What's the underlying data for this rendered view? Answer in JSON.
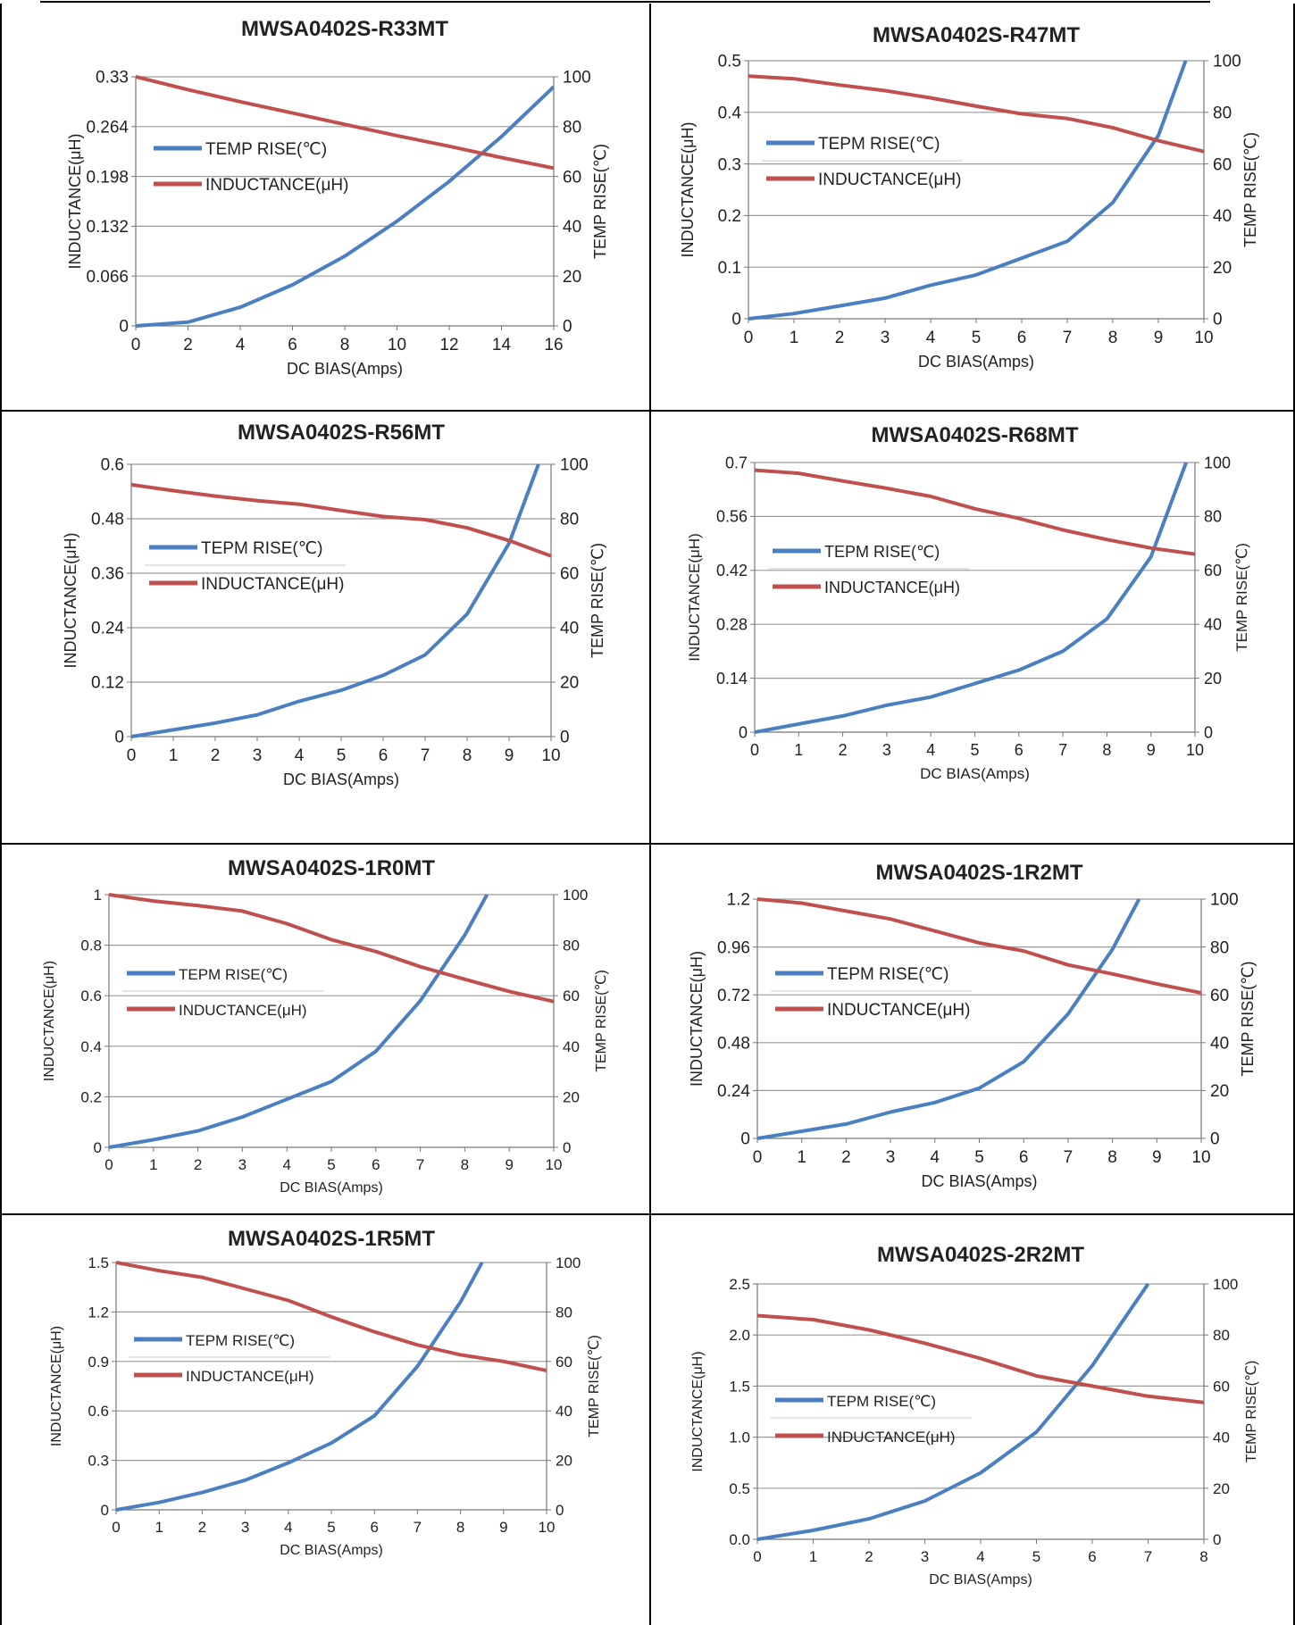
{
  "colors": {
    "temp": "#4a7fc1",
    "inductance": "#c0504d",
    "grid": "#9a9a9a",
    "border": "#000000"
  },
  "chart_data": [
    {
      "type": "line",
      "title": "MWSA0402S-R33MT",
      "xlabel": "DC BIAS(Amps)",
      "ylabel": "INDUCTANCE(μH)",
      "y2label": "TEMP RISE(℃)",
      "xlim": [
        0,
        16
      ],
      "xticks": [
        "0",
        "2",
        "4",
        "6",
        "8",
        "10",
        "12",
        "14",
        "16"
      ],
      "ylim": [
        0,
        0.33
      ],
      "yticks": [
        "0",
        "0.066",
        "0.132",
        "0.198",
        "0.264",
        "0.33"
      ],
      "y2lim": [
        0,
        100
      ],
      "y2ticks": [
        "0",
        "20",
        "40",
        "60",
        "80",
        "100"
      ],
      "legend": [
        "TEMP RISE(℃)",
        "INDUCTANCE(μH)"
      ],
      "grid": true,
      "legend_position": "center-left",
      "series": [
        {
          "axis": "right",
          "x": [
            0,
            2,
            4,
            6,
            8,
            10,
            12,
            14,
            16
          ],
          "y": [
            0,
            1.5,
            7.5,
            16.5,
            28,
            42,
            58,
            76,
            96
          ]
        },
        {
          "axis": "left",
          "x": [
            0,
            2,
            4,
            6,
            8,
            10,
            12,
            14,
            16
          ],
          "y": [
            0.33,
            0.313,
            0.297,
            0.282,
            0.267,
            0.252,
            0.238,
            0.223,
            0.209
          ]
        }
      ]
    },
    {
      "type": "line",
      "title": "MWSA0402S-R47MT",
      "xlabel": "DC BIAS(Amps)",
      "ylabel": "INDUCTANCE(μH)",
      "y2label": "TEMP RISE(℃)",
      "xlim": [
        0,
        10
      ],
      "xticks": [
        "0",
        "1",
        "2",
        "3",
        "4",
        "5",
        "6",
        "7",
        "8",
        "9",
        "10"
      ],
      "ylim": [
        0,
        0.5
      ],
      "yticks": [
        "0",
        "0.1",
        "0.2",
        "0.3",
        "0.4",
        "0.5"
      ],
      "y2lim": [
        0,
        100
      ],
      "y2ticks": [
        "0",
        "20",
        "40",
        "60",
        "80",
        "100"
      ],
      "legend": [
        "TEPM RISE(℃)",
        "INDUCTANCE(μH)"
      ],
      "grid": true,
      "legend_position": "center-left",
      "series": [
        {
          "axis": "right",
          "x": [
            0,
            1,
            2,
            3,
            4,
            5,
            6,
            7,
            8,
            9,
            9.6
          ],
          "y": [
            0,
            2,
            5,
            8,
            13,
            17,
            23.5,
            30,
            45,
            71,
            100
          ]
        },
        {
          "axis": "left",
          "x": [
            0,
            1,
            2,
            3,
            4,
            5,
            6,
            7,
            8,
            9,
            10
          ],
          "y": [
            0.47,
            0.465,
            0.453,
            0.442,
            0.428,
            0.412,
            0.397,
            0.388,
            0.37,
            0.345,
            0.324
          ]
        }
      ]
    },
    {
      "type": "line",
      "title": "MWSA0402S-R56MT",
      "xlabel": "DC BIAS(Amps)",
      "ylabel": "INDUCTANCE(μH)",
      "y2label": "TEMP RISE(℃)",
      "xlim": [
        0,
        10
      ],
      "xticks": [
        "0",
        "1",
        "2",
        "3",
        "4",
        "5",
        "6",
        "7",
        "8",
        "9",
        "10"
      ],
      "ylim": [
        0,
        0.6
      ],
      "yticks": [
        "0",
        "0.12",
        "0.24",
        "0.36",
        "0.48",
        "0.6"
      ],
      "y2lim": [
        0,
        100
      ],
      "y2ticks": [
        "0",
        "20",
        "40",
        "60",
        "80",
        "100"
      ],
      "legend": [
        "TEPM RISE(℃)",
        "INDUCTANCE(μH)"
      ],
      "grid": true,
      "legend_position": "center-left",
      "series": [
        {
          "axis": "right",
          "x": [
            0,
            1,
            2,
            3,
            4,
            5,
            6,
            7,
            8,
            9,
            9.7
          ],
          "y": [
            0,
            2.5,
            5,
            8,
            13,
            17,
            22.5,
            30,
            45,
            71,
            100
          ]
        },
        {
          "axis": "left",
          "x": [
            0,
            1,
            2,
            3,
            4,
            5,
            6,
            7,
            8,
            9,
            10
          ],
          "y": [
            0.555,
            0.542,
            0.53,
            0.52,
            0.512,
            0.498,
            0.485,
            0.478,
            0.46,
            0.432,
            0.398
          ]
        }
      ]
    },
    {
      "type": "line",
      "title": "MWSA0402S-R68MT",
      "xlabel": "DC BIAS(Amps)",
      "ylabel": "INDUCTANCE(μH)",
      "y2label": "TEMP RISE(℃)",
      "xlim": [
        0,
        10
      ],
      "xticks": [
        "0",
        "1",
        "2",
        "3",
        "4",
        "5",
        "6",
        "7",
        "8",
        "9",
        "10"
      ],
      "ylim": [
        0,
        0.7
      ],
      "yticks": [
        "0",
        "0.14",
        "0.28",
        "0.42",
        "0.56",
        "0.7"
      ],
      "y2lim": [
        0,
        100
      ],
      "y2ticks": [
        "0",
        "20",
        "40",
        "60",
        "80",
        "100"
      ],
      "legend": [
        "TEPM RISE(℃)",
        "INDUCTANCE(μH)"
      ],
      "grid": true,
      "legend_position": "center-left",
      "series": [
        {
          "axis": "right",
          "x": [
            0,
            1,
            2,
            3,
            4,
            5,
            6,
            7,
            8,
            9,
            9.8
          ],
          "y": [
            0,
            3,
            6,
            10,
            13,
            18,
            23,
            30,
            42,
            65,
            100
          ]
        },
        {
          "axis": "left",
          "x": [
            0,
            1,
            2,
            3,
            4,
            5,
            6,
            7,
            8,
            9,
            10
          ],
          "y": [
            0.68,
            0.672,
            0.652,
            0.633,
            0.612,
            0.58,
            0.555,
            0.525,
            0.5,
            0.478,
            0.462
          ]
        }
      ]
    },
    {
      "type": "line",
      "title": "MWSA0402S-1R0MT",
      "xlabel": "DC BIAS(Amps)",
      "ylabel": "INDUCTANCE(μH)",
      "y2label": "TEMP RISE(℃)",
      "xlim": [
        0,
        10
      ],
      "xticks": [
        "0",
        "1",
        "2",
        "3",
        "4",
        "5",
        "6",
        "7",
        "8",
        "9",
        "10"
      ],
      "ylim": [
        0,
        1
      ],
      "yticks": [
        "0",
        "0.2",
        "0.4",
        "0.6",
        "0.8",
        "1"
      ],
      "y2lim": [
        0,
        100
      ],
      "y2ticks": [
        "0",
        "20",
        "40",
        "60",
        "80",
        "100"
      ],
      "legend": [
        "TEPM RISE(℃)",
        "INDUCTANCE(μH)"
      ],
      "grid": true,
      "legend_position": "center-left",
      "series": [
        {
          "axis": "right",
          "x": [
            0,
            1,
            2,
            3,
            4,
            5,
            6,
            7,
            8,
            8.5
          ],
          "y": [
            0,
            3,
            6.5,
            12,
            19,
            26,
            38,
            58,
            84,
            100
          ]
        },
        {
          "axis": "left",
          "x": [
            0,
            1,
            2,
            3,
            4,
            5,
            6,
            7,
            8,
            9,
            10
          ],
          "y": [
            1,
            0.975,
            0.957,
            0.935,
            0.885,
            0.822,
            0.775,
            0.715,
            0.665,
            0.617,
            0.577
          ]
        }
      ]
    },
    {
      "type": "line",
      "title": "MWSA0402S-1R2MT",
      "xlabel": "DC BIAS(Amps)",
      "ylabel": "INDUCTANCE(μH)",
      "y2label": "TEMP RISE(℃)",
      "xlim": [
        0,
        10
      ],
      "xticks": [
        "0",
        "1",
        "2",
        "3",
        "4",
        "5",
        "6",
        "7",
        "8",
        "9",
        "10"
      ],
      "ylim": [
        0,
        1.2
      ],
      "yticks": [
        "0",
        "0.24",
        "0.48",
        "0.72",
        "0.96",
        "1.2"
      ],
      "y2lim": [
        0,
        100
      ],
      "y2ticks": [
        "0",
        "20",
        "40",
        "60",
        "80",
        "100"
      ],
      "legend": [
        "TEPM RISE(℃)",
        "INDUCTANCE(μH)"
      ],
      "grid": true,
      "legend_position": "center-left",
      "series": [
        {
          "axis": "right",
          "x": [
            0,
            1,
            2,
            3,
            4,
            5,
            6,
            7,
            8,
            8.6
          ],
          "y": [
            0,
            3,
            6,
            11,
            15,
            21,
            32,
            52,
            79,
            100
          ]
        },
        {
          "axis": "left",
          "x": [
            0,
            1,
            2,
            3,
            4,
            5,
            6,
            7,
            8,
            9,
            10
          ],
          "y": [
            1.2,
            1.18,
            1.14,
            1.1,
            1.04,
            0.98,
            0.94,
            0.87,
            0.825,
            0.775,
            0.73
          ]
        }
      ]
    },
    {
      "type": "line",
      "title": "MWSA0402S-1R5MT",
      "xlabel": "DC BIAS(Amps)",
      "ylabel": "INDUCTANCE(μH)",
      "y2label": "TEMP RISE(℃)",
      "xlim": [
        0,
        10
      ],
      "xticks": [
        "0",
        "1",
        "2",
        "3",
        "4",
        "5",
        "6",
        "7",
        "8",
        "9",
        "10"
      ],
      "ylim": [
        0,
        1.5
      ],
      "yticks": [
        "0",
        "0.3",
        "0.6",
        "0.9",
        "1.2",
        "1.5"
      ],
      "y2lim": [
        0,
        100
      ],
      "y2ticks": [
        "0",
        "20",
        "40",
        "60",
        "80",
        "100"
      ],
      "legend": [
        "TEPM RISE(℃)",
        "INDUCTANCE(μH)"
      ],
      "grid": true,
      "legend_position": "center-left",
      "series": [
        {
          "axis": "right",
          "x": [
            0,
            1,
            2,
            3,
            4,
            5,
            6,
            7,
            8,
            8.5
          ],
          "y": [
            0,
            3,
            7,
            12,
            19,
            27,
            38,
            58,
            84,
            100
          ]
        },
        {
          "axis": "left",
          "x": [
            0,
            1,
            2,
            3,
            4,
            5,
            6,
            7,
            8,
            9,
            10
          ],
          "y": [
            1.5,
            1.45,
            1.41,
            1.34,
            1.27,
            1.17,
            1.08,
            1,
            0.94,
            0.9,
            0.845
          ]
        }
      ]
    },
    {
      "type": "line",
      "title": "MWSA0402S-2R2MT",
      "xlabel": "DC BIAS(Amps)",
      "ylabel": "INDUCTANCE(μH)",
      "y2label": "TEMP RISE(℃)",
      "xlim": [
        0,
        8
      ],
      "xticks": [
        "0",
        "1",
        "2",
        "3",
        "4",
        "5",
        "6",
        "7",
        "8"
      ],
      "ylim": [
        0,
        2.5
      ],
      "yticks": [
        "0.0",
        "0.5",
        "1.0",
        "1.5",
        "2.0",
        "2.5"
      ],
      "y2lim": [
        0,
        100
      ],
      "y2ticks": [
        "0",
        "20",
        "40",
        "60",
        "80",
        "100"
      ],
      "legend": [
        "TEPM RISE(℃)",
        "INDUCTANCE(μH)"
      ],
      "grid": true,
      "legend_position": "center-left",
      "series": [
        {
          "axis": "right",
          "x": [
            0,
            1,
            2,
            3,
            4,
            5,
            6,
            7
          ],
          "y": [
            0,
            3.5,
            8,
            15,
            26,
            42,
            68,
            100
          ]
        },
        {
          "axis": "left",
          "x": [
            0,
            1,
            2,
            3,
            4,
            5,
            6,
            7,
            8
          ],
          "y": [
            2.19,
            2.15,
            2.05,
            1.92,
            1.77,
            1.6,
            1.5,
            1.4,
            1.34
          ]
        }
      ]
    }
  ]
}
